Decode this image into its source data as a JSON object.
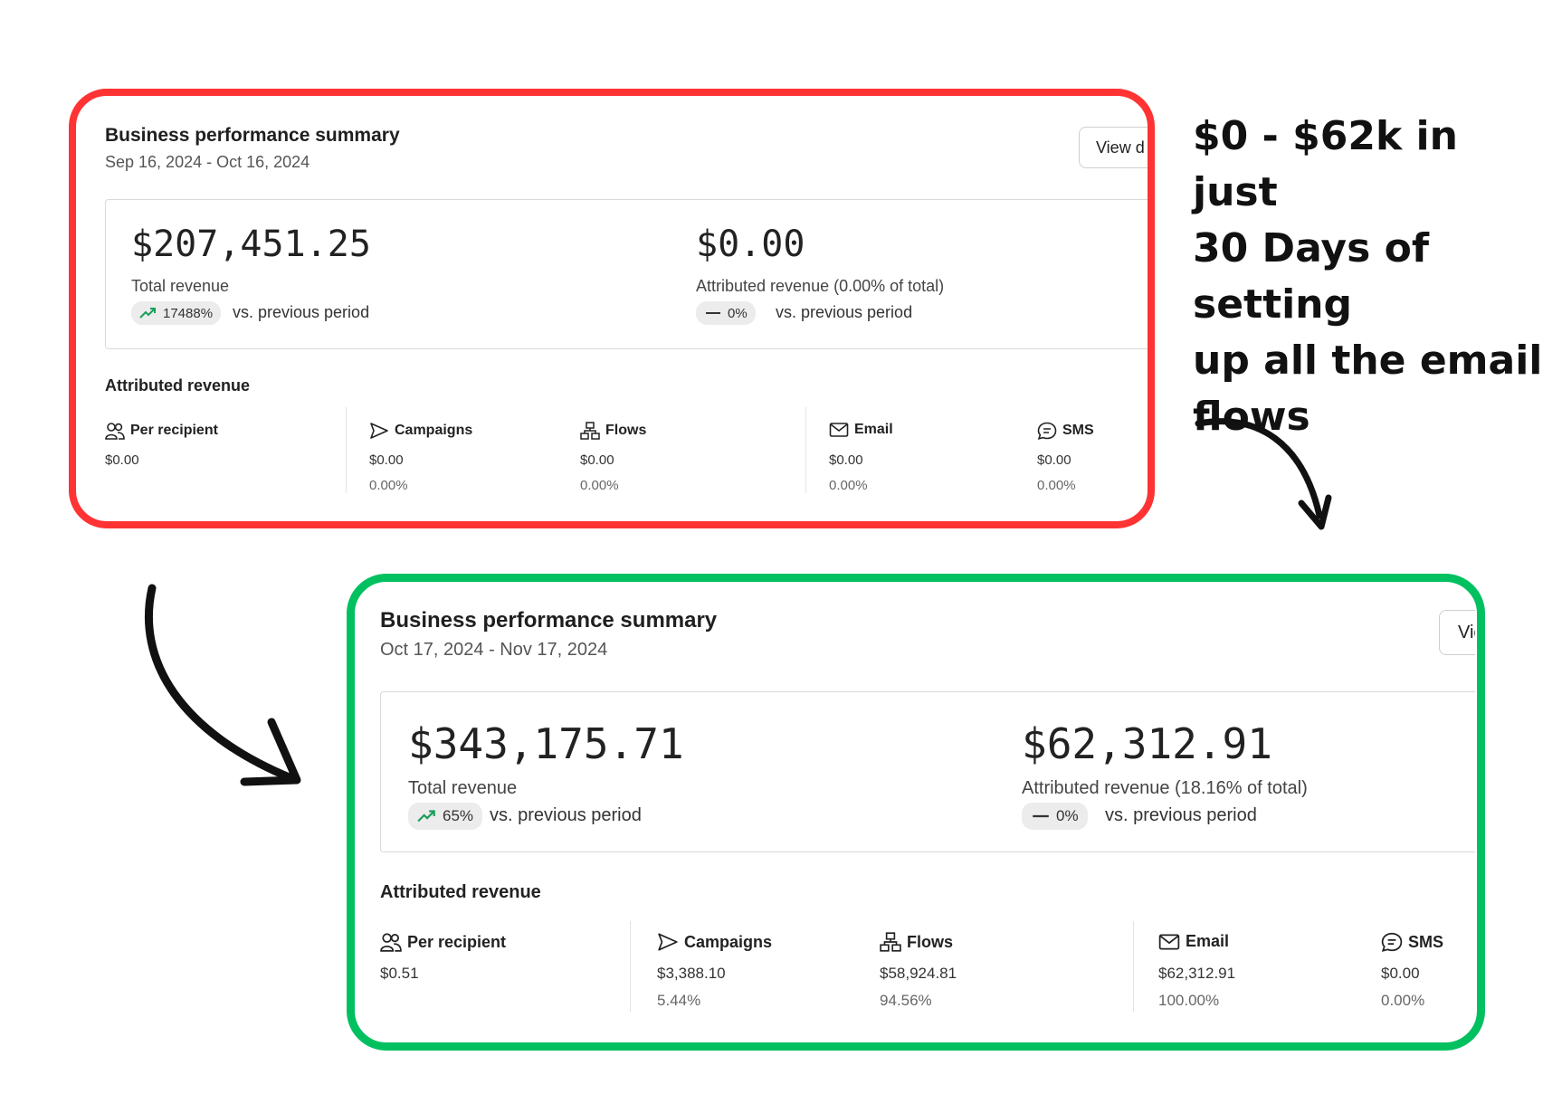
{
  "callout": {
    "line1": "$0 - $62k in just",
    "line2": "30 Days of setting",
    "line3": "up all the email",
    "line4": "flows"
  },
  "colors": {
    "before_frame": "#ff3333",
    "after_frame": "#00c060",
    "trend_up": "#1a9e5a"
  },
  "before": {
    "title": "Business performance summary",
    "date_range": "Sep 16, 2024 - Oct 16, 2024",
    "view_button": "View d",
    "total_revenue": {
      "value": "$207,451.25",
      "label": "Total revenue",
      "change": "17488%",
      "change_icon": "trend-up-icon",
      "vs": "vs. previous period"
    },
    "attributed_revenue": {
      "value": "$0.00",
      "label": "Attributed revenue (0.00% of total)",
      "change": "0%",
      "change_icon": "dash-icon",
      "vs": "vs. previous period"
    },
    "section_title": "Attributed revenue",
    "columns": {
      "per_recipient": {
        "label": "Per recipient",
        "icon": "people-icon",
        "value": "$0.00"
      },
      "campaigns": {
        "label": "Campaigns",
        "icon": "send-icon",
        "value": "$0.00",
        "pct": "0.00%"
      },
      "flows": {
        "label": "Flows",
        "icon": "flow-icon",
        "value": "$0.00",
        "pct": "0.00%"
      },
      "email": {
        "label": "Email",
        "icon": "mail-icon",
        "value": "$0.00",
        "pct": "0.00%"
      },
      "sms": {
        "label": "SMS",
        "icon": "chat-icon",
        "value": "$0.00",
        "pct": "0.00%"
      }
    }
  },
  "after": {
    "title": "Business performance summary",
    "date_range": "Oct 17, 2024 - Nov 17, 2024",
    "view_button": "Vie",
    "total_revenue": {
      "value": "$343,175.71",
      "label": "Total revenue",
      "change": "65%",
      "change_icon": "trend-up-icon",
      "vs": "vs. previous period"
    },
    "attributed_revenue": {
      "value": "$62,312.91",
      "label": "Attributed revenue (18.16% of total)",
      "change": "0%",
      "change_icon": "dash-icon",
      "vs": "vs. previous period"
    },
    "section_title": "Attributed revenue",
    "columns": {
      "per_recipient": {
        "label": "Per recipient",
        "icon": "people-icon",
        "value": "$0.51"
      },
      "campaigns": {
        "label": "Campaigns",
        "icon": "send-icon",
        "value": "$3,388.10",
        "pct": "5.44%"
      },
      "flows": {
        "label": "Flows",
        "icon": "flow-icon",
        "value": "$58,924.81",
        "pct": "94.56%"
      },
      "email": {
        "label": "Email",
        "icon": "mail-icon",
        "value": "$62,312.91",
        "pct": "100.00%"
      },
      "sms": {
        "label": "SMS",
        "icon": "chat-icon",
        "value": "$0.00",
        "pct": "0.00%"
      }
    }
  }
}
